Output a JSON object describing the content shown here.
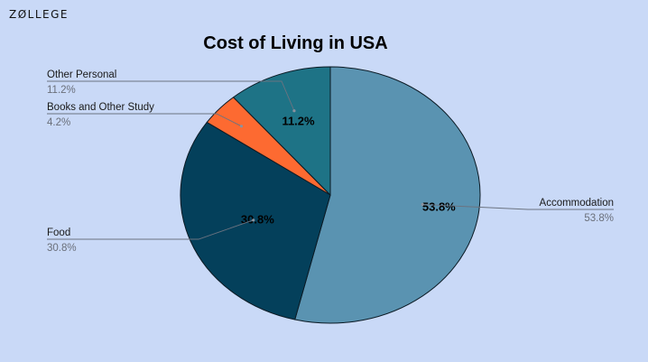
{
  "brand": "ZØLLEGE",
  "chart_data": {
    "type": "pie",
    "title": "Cost of Living in USA",
    "slices": [
      {
        "name": "Accommodation",
        "value": 53.8,
        "label": "53.8%",
        "color": "#5a93b1"
      },
      {
        "name": "Food",
        "value": 30.8,
        "label": "30.8%",
        "color": "#04405b"
      },
      {
        "name": "Books and Other Study",
        "value": 4.2,
        "label": "4.2%",
        "color": "#fd6a31"
      },
      {
        "name": "Other Personal",
        "value": 11.2,
        "label": "11.2%",
        "color": "#1e7386"
      }
    ],
    "inner_labels_shown": [
      "Accommodation",
      "Food",
      "Other Personal"
    ],
    "legend": "callouts"
  }
}
